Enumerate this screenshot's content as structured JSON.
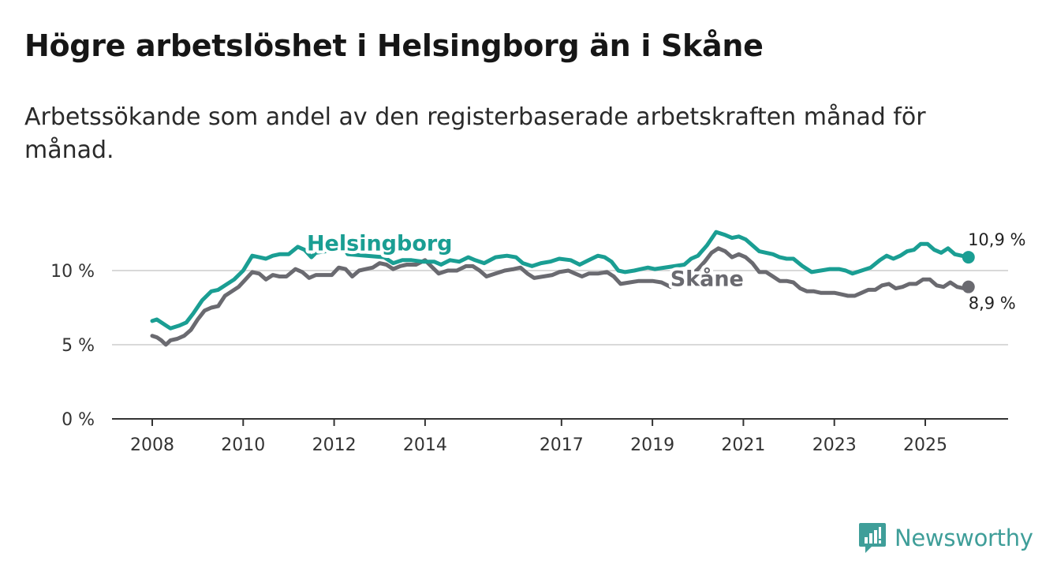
{
  "title": "Högre arbetslöshet i Helsingborg än i Skåne",
  "subtitle": "Arbetssökande som andel av den registerbaserade arbetskraften månad för månad.",
  "logo": {
    "text": "Newsworthy",
    "icon": "newsworthy-bar-chart-icon",
    "color": "#3f9e99"
  },
  "chart_data": {
    "type": "line",
    "title": "Högre arbetslöshet i Helsingborg än i Skåne",
    "xlabel": "",
    "ylabel": "",
    "xlim": [
      2007.95,
      2026.3
    ],
    "ylim": [
      0,
      13
    ],
    "x_ticks": [
      {
        "value": 2008,
        "label": "2008"
      },
      {
        "value": 2010,
        "label": "2010"
      },
      {
        "value": 2012,
        "label": "2012"
      },
      {
        "value": 2014,
        "label": "2014"
      },
      {
        "value": 2017,
        "label": "2017"
      },
      {
        "value": 2019,
        "label": "2019"
      },
      {
        "value": 2021,
        "label": "2021"
      },
      {
        "value": 2023,
        "label": "2023"
      },
      {
        "value": 2025,
        "label": "2025"
      }
    ],
    "y_ticks": [
      {
        "value": 0,
        "label": "0 %"
      },
      {
        "value": 5,
        "label": "5 %"
      },
      {
        "value": 10,
        "label": "10 %"
      }
    ],
    "grid": true,
    "series": [
      {
        "name": "Helsingborg",
        "color": "#1a9e93",
        "end_label": "10,9 %",
        "points": [
          [
            2008.0,
            6.6
          ],
          [
            2008.1,
            6.7
          ],
          [
            2008.3,
            6.3
          ],
          [
            2008.4,
            6.1
          ],
          [
            2008.6,
            6.3
          ],
          [
            2008.75,
            6.5
          ],
          [
            2008.9,
            7.1
          ],
          [
            2009.1,
            8.0
          ],
          [
            2009.3,
            8.6
          ],
          [
            2009.45,
            8.7
          ],
          [
            2009.6,
            9.0
          ],
          [
            2009.8,
            9.4
          ],
          [
            2010.0,
            10.0
          ],
          [
            2010.2,
            11.0
          ],
          [
            2010.35,
            10.9
          ],
          [
            2010.5,
            10.8
          ],
          [
            2010.65,
            11.0
          ],
          [
            2010.8,
            11.1
          ],
          [
            2011.0,
            11.1
          ],
          [
            2011.2,
            11.6
          ],
          [
            2011.35,
            11.4
          ],
          [
            2011.5,
            10.9
          ],
          [
            2011.6,
            11.2
          ],
          [
            2011.8,
            11.3
          ],
          [
            2012.0,
            11.9
          ],
          [
            2012.15,
            11.8
          ],
          [
            2012.3,
            11.1
          ],
          [
            2013.1,
            10.9
          ],
          [
            2013.3,
            10.5
          ],
          [
            2013.5,
            10.7
          ],
          [
            2013.7,
            10.7
          ],
          [
            2013.95,
            10.6
          ],
          [
            2014.2,
            10.6
          ],
          [
            2014.35,
            10.4
          ],
          [
            2014.55,
            10.7
          ],
          [
            2014.75,
            10.6
          ],
          [
            2014.95,
            10.9
          ],
          [
            2015.1,
            10.7
          ],
          [
            2015.3,
            10.5
          ],
          [
            2015.55,
            10.9
          ],
          [
            2015.8,
            11.0
          ],
          [
            2016.0,
            10.9
          ],
          [
            2016.15,
            10.5
          ],
          [
            2016.35,
            10.3
          ],
          [
            2016.55,
            10.5
          ],
          [
            2016.75,
            10.6
          ],
          [
            2016.95,
            10.8
          ],
          [
            2017.2,
            10.7
          ],
          [
            2017.4,
            10.4
          ],
          [
            2017.6,
            10.7
          ],
          [
            2017.8,
            11.0
          ],
          [
            2017.95,
            10.9
          ],
          [
            2018.1,
            10.6
          ],
          [
            2018.25,
            10.0
          ],
          [
            2018.4,
            9.9
          ],
          [
            2018.6,
            10.0
          ],
          [
            2018.75,
            10.1
          ],
          [
            2018.9,
            10.2
          ],
          [
            2019.05,
            10.1
          ],
          [
            2019.7,
            10.4
          ],
          [
            2019.85,
            10.8
          ],
          [
            2020.0,
            11.0
          ],
          [
            2020.2,
            11.7
          ],
          [
            2020.4,
            12.6
          ],
          [
            2020.6,
            12.4
          ],
          [
            2020.75,
            12.2
          ],
          [
            2020.9,
            12.3
          ],
          [
            2021.05,
            12.1
          ],
          [
            2021.2,
            11.7
          ],
          [
            2021.35,
            11.3
          ],
          [
            2021.5,
            11.2
          ],
          [
            2021.65,
            11.1
          ],
          [
            2021.8,
            10.9
          ],
          [
            2021.95,
            10.8
          ],
          [
            2022.1,
            10.8
          ],
          [
            2022.3,
            10.3
          ],
          [
            2022.5,
            9.9
          ],
          [
            2022.7,
            10.0
          ],
          [
            2022.9,
            10.1
          ],
          [
            2023.1,
            10.1
          ],
          [
            2023.25,
            10.0
          ],
          [
            2023.4,
            9.8
          ],
          [
            2023.6,
            10.0
          ],
          [
            2023.8,
            10.2
          ],
          [
            2024.0,
            10.7
          ],
          [
            2024.15,
            11.0
          ],
          [
            2024.3,
            10.8
          ],
          [
            2024.45,
            11.0
          ],
          [
            2024.6,
            11.3
          ],
          [
            2024.75,
            11.4
          ],
          [
            2024.9,
            11.8
          ],
          [
            2025.05,
            11.8
          ],
          [
            2025.2,
            11.4
          ],
          [
            2025.35,
            11.2
          ],
          [
            2025.5,
            11.5
          ],
          [
            2025.65,
            11.1
          ],
          [
            2025.8,
            11.0
          ],
          [
            2025.95,
            10.9
          ]
        ]
      },
      {
        "name": "Skåne",
        "color": "#6a6a70",
        "end_label": "8,9 %",
        "points": [
          [
            2008.0,
            5.6
          ],
          [
            2008.1,
            5.5
          ],
          [
            2008.2,
            5.3
          ],
          [
            2008.3,
            5.0
          ],
          [
            2008.4,
            5.3
          ],
          [
            2008.55,
            5.4
          ],
          [
            2008.7,
            5.6
          ],
          [
            2008.85,
            6.0
          ],
          [
            2009.0,
            6.7
          ],
          [
            2009.15,
            7.3
          ],
          [
            2009.3,
            7.5
          ],
          [
            2009.45,
            7.6
          ],
          [
            2009.6,
            8.3
          ],
          [
            2009.75,
            8.6
          ],
          [
            2009.9,
            8.9
          ],
          [
            2010.05,
            9.4
          ],
          [
            2010.2,
            9.9
          ],
          [
            2010.35,
            9.8
          ],
          [
            2010.5,
            9.4
          ],
          [
            2010.65,
            9.7
          ],
          [
            2010.8,
            9.6
          ],
          [
            2010.95,
            9.6
          ],
          [
            2011.15,
            10.1
          ],
          [
            2011.3,
            9.9
          ],
          [
            2011.45,
            9.5
          ],
          [
            2011.6,
            9.7
          ],
          [
            2011.8,
            9.7
          ],
          [
            2011.95,
            9.7
          ],
          [
            2012.1,
            10.2
          ],
          [
            2012.25,
            10.1
          ],
          [
            2012.4,
            9.6
          ],
          [
            2012.55,
            10.0
          ],
          [
            2012.7,
            10.1
          ],
          [
            2012.85,
            10.2
          ],
          [
            2013.0,
            10.5
          ],
          [
            2013.15,
            10.4
          ],
          [
            2013.3,
            10.1
          ],
          [
            2013.45,
            10.3
          ],
          [
            2013.6,
            10.4
          ],
          [
            2013.8,
            10.4
          ],
          [
            2014.0,
            10.7
          ],
          [
            2014.1,
            10.4
          ],
          [
            2014.3,
            9.8
          ],
          [
            2014.5,
            10.0
          ],
          [
            2014.7,
            10.0
          ],
          [
            2014.9,
            10.3
          ],
          [
            2015.05,
            10.3
          ],
          [
            2015.2,
            10.0
          ],
          [
            2015.35,
            9.6
          ],
          [
            2015.55,
            9.8
          ],
          [
            2015.75,
            10.0
          ],
          [
            2015.95,
            10.1
          ],
          [
            2016.1,
            10.2
          ],
          [
            2016.25,
            9.8
          ],
          [
            2016.4,
            9.5
          ],
          [
            2016.6,
            9.6
          ],
          [
            2016.8,
            9.7
          ],
          [
            2016.95,
            9.9
          ],
          [
            2017.15,
            10.0
          ],
          [
            2017.3,
            9.8
          ],
          [
            2017.45,
            9.6
          ],
          [
            2017.6,
            9.8
          ],
          [
            2017.8,
            9.8
          ],
          [
            2018.0,
            9.9
          ],
          [
            2018.15,
            9.6
          ],
          [
            2018.3,
            9.1
          ],
          [
            2018.5,
            9.2
          ],
          [
            2018.7,
            9.3
          ],
          [
            2018.85,
            9.3
          ],
          [
            2019.0,
            9.3
          ],
          [
            2019.2,
            9.2
          ],
          [
            2019.4,
            8.9
          ],
          [
            2019.55,
            9.1
          ],
          [
            2019.7,
            9.3
          ],
          [
            2019.85,
            9.7
          ],
          [
            2020.0,
            10.1
          ],
          [
            2020.15,
            10.6
          ],
          [
            2020.3,
            11.2
          ],
          [
            2020.45,
            11.5
          ],
          [
            2020.6,
            11.3
          ],
          [
            2020.75,
            10.9
          ],
          [
            2020.9,
            11.1
          ],
          [
            2021.05,
            10.9
          ],
          [
            2021.2,
            10.5
          ],
          [
            2021.35,
            9.9
          ],
          [
            2021.5,
            9.9
          ],
          [
            2021.65,
            9.6
          ],
          [
            2021.8,
            9.3
          ],
          [
            2021.95,
            9.3
          ],
          [
            2022.1,
            9.2
          ],
          [
            2022.25,
            8.8
          ],
          [
            2022.4,
            8.6
          ],
          [
            2022.55,
            8.6
          ],
          [
            2022.7,
            8.5
          ],
          [
            2022.85,
            8.5
          ],
          [
            2023.0,
            8.5
          ],
          [
            2023.15,
            8.4
          ],
          [
            2023.3,
            8.3
          ],
          [
            2023.45,
            8.3
          ],
          [
            2023.6,
            8.5
          ],
          [
            2023.75,
            8.7
          ],
          [
            2023.9,
            8.7
          ],
          [
            2024.05,
            9.0
          ],
          [
            2024.2,
            9.1
          ],
          [
            2024.35,
            8.8
          ],
          [
            2024.5,
            8.9
          ],
          [
            2024.65,
            9.1
          ],
          [
            2024.8,
            9.1
          ],
          [
            2024.95,
            9.4
          ],
          [
            2025.1,
            9.4
          ],
          [
            2025.25,
            9.0
          ],
          [
            2025.4,
            8.9
          ],
          [
            2025.55,
            9.2
          ],
          [
            2025.7,
            8.9
          ],
          [
            2025.85,
            8.8
          ],
          [
            2025.95,
            8.9
          ]
        ]
      }
    ]
  }
}
